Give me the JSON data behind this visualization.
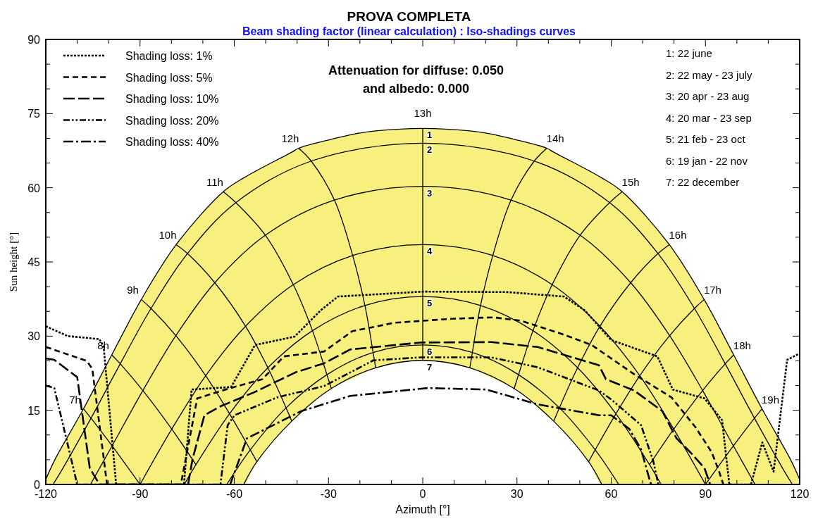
{
  "chart_data": {
    "type": "line",
    "title": "PROVA COMPLETA",
    "subtitle": "Beam shading factor (linear calculation) : Iso-shadings curves",
    "xlabel": "Azimuth [°]",
    "ylabel": "Sun height [°]",
    "xlim": [
      -120,
      120
    ],
    "ylim": [
      0,
      90
    ],
    "xticks": [
      {
        "value": -120,
        "label": "-120"
      },
      {
        "value": -110,
        "label": null
      },
      {
        "value": -100,
        "label": null
      },
      {
        "value": -90,
        "label": "-90"
      },
      {
        "value": -80,
        "label": null
      },
      {
        "value": -70,
        "label": null
      },
      {
        "value": -60,
        "label": "-60"
      },
      {
        "value": -50,
        "label": null
      },
      {
        "value": -40,
        "label": null
      },
      {
        "value": -30,
        "label": "-30"
      },
      {
        "value": -20,
        "label": null
      },
      {
        "value": -10,
        "label": null
      },
      0,
      {
        "value": 10,
        "label": null
      },
      {
        "value": 20,
        "label": null
      },
      30,
      {
        "value": 40,
        "label": null
      },
      {
        "value": 50,
        "label": null
      },
      60,
      {
        "value": 70,
        "label": null
      },
      {
        "value": 80,
        "label": null
      },
      90,
      {
        "value": 100,
        "label": null
      },
      {
        "value": 110,
        "label": null
      },
      120
    ],
    "yticks": [
      0,
      {
        "value": 5,
        "label": null
      },
      {
        "value": 10,
        "label": null
      },
      15,
      {
        "value": 20,
        "label": null
      },
      {
        "value": 25,
        "label": null
      },
      30,
      {
        "value": 35,
        "label": null
      },
      {
        "value": 40,
        "label": null
      },
      45,
      {
        "value": 50,
        "label": null
      },
      {
        "value": 55,
        "label": null
      },
      60,
      {
        "value": 65,
        "label": null
      },
      {
        "value": 70,
        "label": null
      },
      75,
      {
        "value": 80,
        "label": null
      },
      {
        "value": 85,
        "label": null
      },
      90
    ],
    "legend": "top left",
    "grid": false,
    "series": [
      {
        "color": "#000000",
        "x": [
          -108,
          -105.6,
          -98.9,
          -90
        ],
        "values": [
          15.3,
          13.4,
          7.8,
          0
        ]
      },
      {
        "color": "#000000",
        "x": [
          -99,
          -96.3,
          -89.1,
          -79.9,
          -72.2
        ],
        "values": [
          26.2,
          24.4,
          19,
          11.2,
          4
        ]
      },
      {
        "color": "#000000",
        "x": [
          -89.6,
          -86.5,
          -78.6,
          -69.1,
          -61.5,
          -54.9,
          -52.8
        ],
        "values": [
          37.4,
          35.6,
          30.1,
          22,
          14.3,
          7,
          4.6
        ]
      },
      {
        "color": "#000000",
        "x": [
          -78.5,
          -74.9,
          -66.2,
          -56.4,
          -49.3,
          -43.5,
          -41.7
        ],
        "values": [
          48.5,
          46.7,
          40.8,
          32,
          23.6,
          15.5,
          12.8
        ]
      },
      {
        "color": "#000000",
        "x": [
          -63.5,
          -59.5,
          -50.1,
          -41.2,
          -35.1,
          -30.5,
          -29.1
        ],
        "values": [
          59.2,
          57,
          50.4,
          40.4,
          31.1,
          22.2,
          19.4
        ]
      },
      {
        "color": "#000000",
        "x": [
          -39.5,
          -35.5,
          -28.1,
          -22.3,
          -18.4,
          -15.8,
          -15
        ],
        "values": [
          68,
          65.4,
          57.5,
          46.3,
          36.2,
          26.7,
          23.6
        ]
      },
      {
        "color": "#000000",
        "x": [
          0,
          0,
          0,
          0,
          0,
          0,
          0
        ],
        "values": [
          72,
          69,
          60.3,
          48.5,
          38,
          28.2,
          25.1
        ]
      },
      {
        "color": "#000000",
        "x": [
          39.5,
          35.5,
          28.1,
          22.3,
          18.4,
          15.8,
          15
        ],
        "values": [
          68,
          65.4,
          57.5,
          46.3,
          36.2,
          26.7,
          23.6
        ]
      },
      {
        "color": "#000000",
        "x": [
          63.5,
          59.5,
          50.1,
          41.2,
          35.1,
          30.5,
          29.1
        ],
        "values": [
          59.2,
          57,
          50.4,
          40.4,
          31.1,
          22.2,
          19.4
        ]
      },
      {
        "color": "#000000",
        "x": [
          78.5,
          74.9,
          66.2,
          56.4,
          49.3,
          43.5,
          41.7
        ],
        "values": [
          48.5,
          46.7,
          40.8,
          32,
          23.6,
          15.5,
          12.8
        ]
      },
      {
        "color": "#000000",
        "x": [
          89.6,
          86.5,
          78.6,
          69.1,
          61.5,
          54.9,
          52.8
        ],
        "values": [
          37.4,
          35.6,
          30.1,
          22,
          14.3,
          7,
          4.6
        ]
      },
      {
        "color": "#000000",
        "x": [
          99,
          96.3,
          89.1,
          79.9,
          72.2
        ],
        "values": [
          26.2,
          24.4,
          19,
          11.2,
          4
        ]
      },
      {
        "color": "#000000",
        "x": [
          108,
          105.6,
          98.9,
          90
        ],
        "values": [
          15.3,
          13.4,
          7.8,
          0
        ]
      },
      {
        "name": "1",
        "color": "#000000",
        "line_style": "solid",
        "x": [
          -120,
          -117.2,
          -108,
          -99,
          -89.6,
          -78.5,
          -63.5,
          -57,
          -52.8,
          -41.7,
          -39.5,
          -29.1,
          -21.6,
          -15,
          0,
          15,
          21.6,
          29.1,
          39.5,
          41.7,
          52.8,
          57,
          63.5,
          78.5,
          89.6,
          99,
          108,
          117.2,
          120
        ],
        "values": [
          1,
          4.9,
          15.3,
          26.2,
          37.4,
          48.5,
          59.2,
          62,
          63.5,
          67.2,
          68,
          69.8,
          70.9,
          71.5,
          72,
          71.5,
          70.9,
          69.8,
          68,
          67.2,
          63.5,
          62,
          59.2,
          48.5,
          37.4,
          26.2,
          15.3,
          4.9,
          1
        ],
        "upper": [
          1,
          4.9,
          15.3,
          26.2,
          37.4,
          48.5,
          59.2,
          62,
          63.5,
          67.2,
          68,
          69.8,
          70.9,
          71.5,
          72,
          71.5,
          70.9,
          69.8,
          68,
          67.2,
          63.5,
          62,
          59.2,
          48.5,
          37.4,
          26.2,
          15.3,
          4.9,
          1
        ],
        "lower": [
          0,
          0,
          0,
          0,
          0,
          0,
          0,
          0,
          4.6,
          12.8,
          13.9,
          19.4,
          21.6,
          23.6,
          25.1,
          23.6,
          21.6,
          19.4,
          13.9,
          12.8,
          4.6,
          0,
          0,
          0,
          0,
          0,
          0,
          0,
          0
        ]
      },
      {
        "name": "2",
        "color": "#000000",
        "line_style": "solid",
        "x": [
          -117.7,
          -115,
          -105.6,
          -96.3,
          -86.5,
          -74.9,
          -59.5,
          -35.5,
          0,
          35.5,
          59.5,
          74.9,
          86.5,
          96.3,
          105.6,
          115,
          117.7
        ],
        "values": [
          0,
          2.8,
          13.4,
          24.4,
          35.6,
          46.7,
          57,
          65.4,
          69,
          65.4,
          57,
          46.7,
          35.6,
          24.4,
          13.4,
          2.8,
          0
        ]
      },
      {
        "name": "3",
        "color": "#000000",
        "line_style": "solid",
        "x": [
          -105.8,
          -98.9,
          -89.1,
          -78.6,
          -66.2,
          -50.1,
          -28.1,
          0,
          28.1,
          50.1,
          66.2,
          78.6,
          89.1,
          98.9,
          105.8
        ],
        "values": [
          0,
          7.8,
          19,
          30.1,
          40.8,
          50.4,
          57.5,
          60.3,
          57.5,
          50.4,
          40.8,
          30.1,
          19,
          7.8,
          0
        ]
      },
      {
        "name": "4",
        "color": "#000000",
        "line_style": "solid",
        "x": [
          -90,
          -79.9,
          -69.1,
          -56.4,
          -41.2,
          -22.3,
          0,
          22.3,
          41.2,
          56.4,
          69.1,
          79.9,
          90
        ],
        "values": [
          0,
          11.2,
          22,
          32,
          40.4,
          46.3,
          48.5,
          46.3,
          40.4,
          32,
          22,
          11.2,
          0
        ]
      },
      {
        "name": "5",
        "color": "#000000",
        "line_style": "solid",
        "x": [
          -75.9,
          -72.2,
          -61.5,
          -49.3,
          -35.1,
          -18.4,
          0,
          18.4,
          35.1,
          49.3,
          61.5,
          72.2,
          75.9
        ],
        "values": [
          0,
          4,
          14.3,
          23.6,
          31.1,
          36.2,
          38,
          36.2,
          31.1,
          23.6,
          14.3,
          4,
          0
        ]
      },
      {
        "name": "6",
        "color": "#000000",
        "line_style": "solid",
        "x": [
          -62.4,
          -54.9,
          -43.5,
          -30.5,
          -15.8,
          0,
          15.8,
          30.5,
          43.5,
          54.9,
          62.4
        ],
        "values": [
          0,
          7,
          15.5,
          22.2,
          26.7,
          28.2,
          26.7,
          22.2,
          15.5,
          7,
          0
        ]
      },
      {
        "name": "7",
        "color": "#000000",
        "line_style": "solid",
        "x": [
          -57,
          -52.8,
          -41.7,
          -29.1,
          -15,
          0,
          15,
          29.1,
          41.7,
          52.8,
          57
        ],
        "values": [
          0,
          4.6,
          12.8,
          19.4,
          23.6,
          25.1,
          23.6,
          19.4,
          12.8,
          4.6,
          0
        ]
      },
      {
        "name": "Shading loss: 1%",
        "color": "#000000",
        "line_style": "dotted",
        "x": [
          -120,
          -113,
          -103,
          -101.6,
          -97.6,
          -76,
          -73.6,
          -61,
          -53.4,
          -40.8,
          -32.5,
          -27,
          0,
          27,
          45,
          51.6,
          60,
          74.7,
          79.6,
          89.7,
          95.3,
          97.6,
          104.5,
          108.1,
          111.7,
          116,
          120
        ],
        "values": [
          32,
          30,
          29.4,
          28,
          0,
          0,
          19.2,
          19.7,
          28.2,
          29.9,
          35.2,
          38,
          39,
          38.9,
          38,
          35.2,
          29.2,
          25.9,
          19.2,
          17.4,
          13,
          0,
          0,
          8.5,
          2.6,
          25.2,
          26.5
        ]
      },
      {
        "name": "Shading loss: 5%",
        "color": "#000000",
        "line_style": "dashed",
        "x": [
          -120,
          -107,
          -105.2,
          -100.5,
          -77,
          -71.8,
          -67.3,
          -62.8,
          -51,
          -44.2,
          -31.4,
          -22.4,
          -9,
          9,
          22.4,
          31.4,
          44.9,
          53.8,
          67.3,
          79.2,
          86.8,
          92,
          94.2,
          95.7
        ],
        "values": [
          27.8,
          25,
          23.4,
          0,
          0,
          17.4,
          18.3,
          19.2,
          21.3,
          25.9,
          26.9,
          31,
          32.7,
          33.5,
          33.8,
          33.1,
          30.3,
          28.2,
          22.3,
          17.6,
          11.6,
          6.5,
          2.9,
          0
        ]
      },
      {
        "name": "Shading loss: 10%",
        "color": "#000000",
        "line_style": "dashed",
        "x": [
          -120,
          -117.3,
          -110,
          -106,
          -102.9,
          -74.7,
          -73.3,
          -69.5,
          -64.4,
          -53.8,
          -40.4,
          -31.4,
          -23.1,
          -0.7,
          21.8,
          36.6,
          56.1,
          58.3,
          67.3,
          76.3,
          80.8,
          85.2,
          89.7,
          91.5
        ],
        "values": [
          25.5,
          25.2,
          21.7,
          3.3,
          0,
          0,
          5.1,
          14,
          15.8,
          18.6,
          22.7,
          24.5,
          27.3,
          28.7,
          28.8,
          27.8,
          24.1,
          21.3,
          19,
          14.8,
          9.3,
          6.5,
          3.3,
          0
        ]
      },
      {
        "name": "Shading loss: 20%",
        "color": "#000000",
        "line_style": "dashed",
        "x": [
          -120,
          -117.3,
          -110,
          -64.4,
          -62.1,
          -59.9,
          -46.4,
          -31.4,
          -15.7,
          -0.7,
          21.8,
          36.6,
          56.1,
          60,
          69.5,
          73.4,
          75
        ],
        "values": [
          20,
          19.5,
          0,
          0,
          12,
          14,
          17.6,
          19.9,
          25.1,
          25.7,
          25.7,
          23.7,
          19,
          17.2,
          12,
          4.7,
          0
        ]
      },
      {
        "name": "Shading loss: 40%",
        "color": "#000000",
        "line_style": "dashed",
        "x": [
          -61.3,
          -56,
          -38.8,
          -23.1,
          1.6,
          20.2,
          36.6,
          56.1,
          60,
          65.8,
          69.5,
          71.8,
          72.7
        ],
        "values": [
          0,
          9.3,
          14.8,
          17.9,
          19.5,
          19.2,
          16.2,
          14,
          14,
          11.2,
          7.1,
          1.9,
          0
        ]
      }
    ],
    "annotations": [
      "Attenuation for diffuse: 0.050",
      "and albedo: 0.000",
      "1: 22 june",
      "2: 22 may - 23 july",
      "3: 20 apr - 23 aug",
      "4: 20 mar - 23 sep",
      "5: 21 feb - 23 oct",
      "6: 19 jan - 22 nov",
      "7: 22 december",
      {
        "text": "7h",
        "x": -108,
        "y": 15.3
      },
      {
        "text": "8h",
        "x": -99,
        "y": 26.2
      },
      {
        "text": "9h",
        "x": -89.6,
        "y": 37.4
      },
      {
        "text": "10h",
        "x": -78.5,
        "y": 48.5
      },
      {
        "text": "11h",
        "x": -63.5,
        "y": 59.2
      },
      {
        "text": "12h",
        "x": -39.5,
        "y": 68
      },
      {
        "text": "13h",
        "x": 0,
        "y": 72
      },
      {
        "text": "14h",
        "x": 39.5,
        "y": 68
      },
      {
        "text": "15h",
        "x": 63.5,
        "y": 59.2
      },
      {
        "text": "16h",
        "x": 78.5,
        "y": 48.5
      },
      {
        "text": "17h",
        "x": 89.6,
        "y": 37.4
      },
      {
        "text": "18h",
        "x": 99,
        "y": 26.2
      },
      {
        "text": "19h",
        "x": 108,
        "y": 15.3
      }
    ]
  }
}
